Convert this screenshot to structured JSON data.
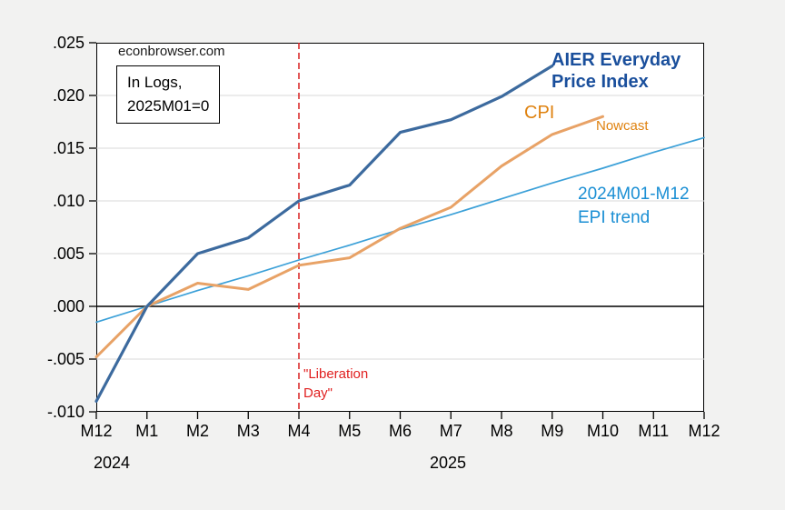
{
  "watermark": "econbrowser.com",
  "note_box": {
    "line1": "In Logs,",
    "line2": "2025M01=0"
  },
  "annotations": {
    "epi_label_line1": "AIER Everyday",
    "epi_label_line2": "Price Index",
    "cpi_label": "CPI",
    "nowcast_label": "Nowcast",
    "trend_label_line1": "2024M01-M12",
    "trend_label_line2": "EPI trend",
    "event_label_line1": "\"Liberation",
    "event_label_line2": "Day\"",
    "year_left": "2024",
    "year_right": "2025"
  },
  "chart_data": {
    "type": "line",
    "title": "",
    "xlabel": "",
    "ylabel": "",
    "note": "In Logs, 2025M01=0",
    "x_tick_labels": [
      "M12",
      "M1",
      "M2",
      "M3",
      "M4",
      "M5",
      "M6",
      "M7",
      "M8",
      "M9",
      "M10",
      "M11",
      "M12"
    ],
    "x_years": {
      "M12_first": "2024",
      "M1_onward": "2025"
    },
    "y_tick_labels": [
      ".025",
      ".020",
      ".015",
      ".010",
      ".005",
      ".000",
      "-.005",
      "-.010"
    ],
    "y_tick_values": [
      0.025,
      0.02,
      0.015,
      0.01,
      0.005,
      0.0,
      -0.005,
      -0.01
    ],
    "ylim": [
      -0.01,
      0.025
    ],
    "grid": "horizontal",
    "zero_line": true,
    "series": [
      {
        "name": "AIER Everyday Price Index",
        "color": "#3c6a9e",
        "width": 3.2,
        "values": [
          -0.009,
          0.0,
          0.005,
          0.0065,
          0.01,
          0.0115,
          0.0165,
          0.0177,
          0.0199,
          0.0228
        ]
      },
      {
        "name": "CPI (Nowcast)",
        "color": "#e8a266",
        "width": 3.0,
        "values": [
          -0.0048,
          0.0,
          0.0022,
          0.0016,
          0.0039,
          0.0046,
          0.0074,
          0.0094,
          0.0133,
          0.0163,
          0.018
        ]
      },
      {
        "name": "2024M01-M12 EPI trend",
        "color": "#3ba0d8",
        "width": 1.7,
        "values": [
          -0.0015,
          0.0,
          0.0015,
          0.0029,
          0.0044,
          0.0058,
          0.0073,
          0.0087,
          0.0102,
          0.0117,
          0.0131,
          0.0146,
          0.016
        ]
      }
    ],
    "event_line": {
      "x_index": 4,
      "x_label": "M4",
      "label": "\"Liberation Day\"",
      "color": "#d92121",
      "style": "dashed"
    }
  }
}
